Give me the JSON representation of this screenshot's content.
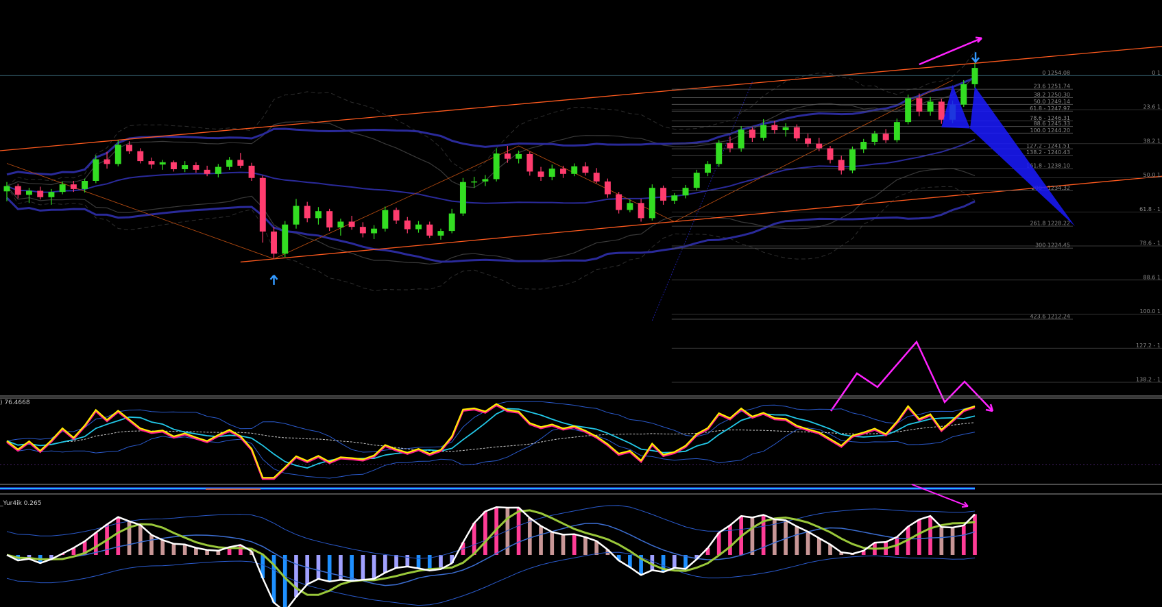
{
  "chart_data": {
    "type": "candlestick",
    "main": {
      "candles": [
        [
          1234.2,
          1235.8,
          1232.5,
          1235.1
        ],
        [
          1235.1,
          1235.5,
          1233.0,
          1233.6
        ],
        [
          1233.6,
          1234.8,
          1232.2,
          1234.3
        ],
        [
          1234.3,
          1235.0,
          1232.8,
          1233.2
        ],
        [
          1233.2,
          1234.6,
          1231.9,
          1234.1
        ],
        [
          1234.1,
          1235.9,
          1233.7,
          1235.4
        ],
        [
          1235.4,
          1236.0,
          1234.1,
          1234.6
        ],
        [
          1234.6,
          1236.4,
          1234.0,
          1236.0
        ],
        [
          1236.0,
          1240.4,
          1235.6,
          1239.7
        ],
        [
          1239.7,
          1241.0,
          1238.1,
          1238.9
        ],
        [
          1238.9,
          1243.0,
          1238.5,
          1242.2
        ],
        [
          1242.2,
          1242.8,
          1240.6,
          1241.1
        ],
        [
          1241.1,
          1241.6,
          1239.0,
          1239.4
        ],
        [
          1239.4,
          1240.0,
          1238.1,
          1238.8
        ],
        [
          1238.8,
          1239.6,
          1237.9,
          1239.2
        ],
        [
          1239.2,
          1239.5,
          1237.6,
          1238.0
        ],
        [
          1238.0,
          1239.4,
          1237.5,
          1238.7
        ],
        [
          1238.7,
          1239.2,
          1237.4,
          1237.9
        ],
        [
          1237.9,
          1238.6,
          1236.8,
          1237.2
        ],
        [
          1237.2,
          1238.9,
          1236.6,
          1238.4
        ],
        [
          1238.4,
          1240.1,
          1237.9,
          1239.6
        ],
        [
          1239.6,
          1240.8,
          1238.2,
          1238.6
        ],
        [
          1238.6,
          1239.1,
          1236.0,
          1236.5
        ],
        [
          1236.5,
          1236.9,
          1225.4,
          1227.3
        ],
        [
          1227.3,
          1228.1,
          1222.6,
          1223.5
        ],
        [
          1223.5,
          1229.1,
          1222.9,
          1228.5
        ],
        [
          1228.5,
          1232.9,
          1227.8,
          1231.7
        ],
        [
          1231.7,
          1232.4,
          1228.9,
          1229.6
        ],
        [
          1229.6,
          1231.5,
          1228.5,
          1230.8
        ],
        [
          1230.8,
          1231.2,
          1227.4,
          1228.0
        ],
        [
          1228.0,
          1229.5,
          1226.6,
          1229.0
        ],
        [
          1229.0,
          1230.0,
          1227.6,
          1228.1
        ],
        [
          1228.1,
          1228.9,
          1226.3,
          1227.0
        ],
        [
          1227.0,
          1228.4,
          1226.0,
          1227.8
        ],
        [
          1227.8,
          1231.6,
          1227.3,
          1231.0
        ],
        [
          1231.0,
          1231.4,
          1228.6,
          1229.2
        ],
        [
          1229.2,
          1229.8,
          1227.0,
          1227.7
        ],
        [
          1227.7,
          1229.1,
          1227.1,
          1228.5
        ],
        [
          1228.5,
          1229.0,
          1226.2,
          1226.6
        ],
        [
          1226.6,
          1227.8,
          1225.9,
          1227.4
        ],
        [
          1227.4,
          1231.2,
          1227.0,
          1230.4
        ],
        [
          1230.4,
          1236.5,
          1230.0,
          1235.8
        ],
        [
          1235.8,
          1236.7,
          1234.8,
          1235.9
        ],
        [
          1235.9,
          1237.0,
          1235.1,
          1236.3
        ],
        [
          1236.3,
          1241.6,
          1235.9,
          1240.7
        ],
        [
          1240.7,
          1242.0,
          1239.1,
          1239.8
        ],
        [
          1239.8,
          1241.2,
          1239.0,
          1240.6
        ],
        [
          1240.6,
          1241.0,
          1236.9,
          1237.6
        ],
        [
          1237.6,
          1238.4,
          1236.0,
          1236.7
        ],
        [
          1236.7,
          1238.8,
          1236.1,
          1238.1
        ],
        [
          1238.1,
          1238.6,
          1236.5,
          1237.2
        ],
        [
          1237.2,
          1239.0,
          1236.8,
          1238.5
        ],
        [
          1238.5,
          1239.2,
          1236.9,
          1237.4
        ],
        [
          1237.4,
          1238.2,
          1235.6,
          1235.9
        ],
        [
          1235.9,
          1236.4,
          1233.1,
          1233.7
        ],
        [
          1233.7,
          1234.1,
          1230.4,
          1231.0
        ],
        [
          1231.0,
          1232.8,
          1230.6,
          1232.2
        ],
        [
          1232.2,
          1232.9,
          1229.0,
          1229.6
        ],
        [
          1229.6,
          1235.4,
          1229.2,
          1234.8
        ],
        [
          1234.8,
          1235.2,
          1231.9,
          1232.6
        ],
        [
          1232.6,
          1233.9,
          1232.0,
          1233.5
        ],
        [
          1233.5,
          1235.3,
          1233.0,
          1234.8
        ],
        [
          1234.8,
          1237.9,
          1234.4,
          1237.4
        ],
        [
          1237.4,
          1239.4,
          1236.8,
          1238.9
        ],
        [
          1238.9,
          1243.0,
          1238.4,
          1242.5
        ],
        [
          1242.5,
          1243.6,
          1240.9,
          1241.6
        ],
        [
          1241.6,
          1245.4,
          1241.0,
          1244.8
        ],
        [
          1244.8,
          1245.2,
          1242.7,
          1243.4
        ],
        [
          1243.4,
          1246.6,
          1242.9,
          1245.6
        ],
        [
          1245.6,
          1246.3,
          1244.1,
          1244.7
        ],
        [
          1244.7,
          1245.9,
          1243.6,
          1245.2
        ],
        [
          1245.2,
          1245.7,
          1242.8,
          1243.3
        ],
        [
          1243.3,
          1244.1,
          1241.8,
          1242.4
        ],
        [
          1242.4,
          1243.4,
          1241.1,
          1241.6
        ],
        [
          1241.6,
          1242.0,
          1239.0,
          1239.6
        ],
        [
          1239.6,
          1240.3,
          1237.1,
          1237.8
        ],
        [
          1237.8,
          1241.9,
          1237.3,
          1241.4
        ],
        [
          1241.4,
          1243.2,
          1240.8,
          1242.7
        ],
        [
          1242.7,
          1244.6,
          1242.1,
          1244.1
        ],
        [
          1244.1,
          1244.9,
          1242.5,
          1243.0
        ],
        [
          1243.0,
          1246.7,
          1242.6,
          1246.1
        ],
        [
          1246.1,
          1250.8,
          1245.7,
          1250.2
        ],
        [
          1250.2,
          1251.0,
          1247.1,
          1247.9
        ],
        [
          1247.9,
          1250.4,
          1247.2,
          1249.6
        ],
        [
          1249.6,
          1250.1,
          1245.8,
          1246.5
        ],
        [
          1246.5,
          1249.8,
          1245.9,
          1249.1
        ],
        [
          1249.1,
          1253.3,
          1248.7,
          1252.6
        ],
        [
          1252.6,
          1256.2,
          1251.9,
          1255.4
        ]
      ],
      "fibonacci_levels": [
        {
          "label": "0 1254.08",
          "value": 1254.08
        },
        {
          "label": "23.6 1251.74",
          "value": 1251.74
        },
        {
          "label": "38.2 1250.30",
          "value": 1250.3
        },
        {
          "label": "50.0 1249.14",
          "value": 1249.14
        },
        {
          "label": "61.8 - 1247.97",
          "value": 1247.97
        },
        {
          "label": "78.6 - 1246.31",
          "value": 1246.31
        },
        {
          "label": "88.6 1245.33",
          "value": 1245.33
        },
        {
          "label": "100.0 1244.20",
          "value": 1244.2
        },
        {
          "label": "127.2 - 1241.51",
          "value": 1241.51
        },
        {
          "label": "138.2 - 1240.43",
          "value": 1240.43
        },
        {
          "label": "161.8 - 1238.10",
          "value": 1238.1
        },
        {
          "label": "200 - 1234.32",
          "value": 1234.32
        },
        {
          "label": "261.8 1228.22",
          "value": 1228.22
        },
        {
          "label": "300 1224.45",
          "value": 1224.45
        },
        {
          "label": "423.6 1212.24",
          "value": 1212.24
        }
      ],
      "right_fib_labels": [
        "0 1",
        "23.6 1",
        "38.2 1",
        "50.0 1",
        "61.8 - 1",
        "78.6 - 1",
        "88.6 1",
        "100.0 1",
        "127.2 - 1",
        "138.2 - 1"
      ],
      "ylim": [
        1200,
        1260
      ]
    },
    "indicator1": {
      "label": ") 76.4668"
    },
    "indicator2": {
      "label": "_Yur4ik 0.265"
    }
  },
  "colors": {
    "bull": "#33dd22",
    "bear": "#ff3c6e",
    "trendline": "#ff5a1e",
    "ma": "#2a2a9a",
    "fib": "#5a5a5a",
    "magenta": "#ff22ff",
    "pattern": "#1a1aff",
    "arrow": "#3399ff"
  }
}
